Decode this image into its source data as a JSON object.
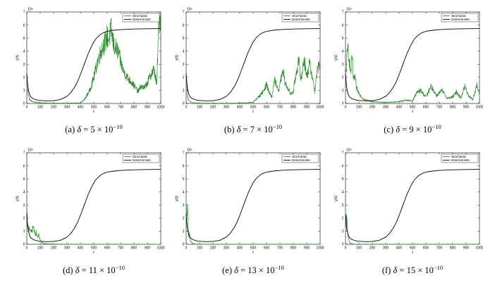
{
  "chart_data": [
    {
      "type": "line",
      "caption_label": "(a)",
      "delta_symbol": "δ",
      "delta_text": "= 5 × 10",
      "delta_exp": "−10",
      "xlabel": "t",
      "ylabel": "y(t)",
      "y_scale_label": "10⁸",
      "xlim": [
        0,
        1000
      ],
      "ylim": [
        0,
        7
      ],
      "xticks": [
        "0",
        "100",
        "200",
        "300",
        "400",
        "500",
        "600",
        "700",
        "800",
        "900",
        "1000"
      ],
      "yticks": [
        "0",
        "1",
        "2",
        "3",
        "4",
        "5",
        "6",
        "7"
      ],
      "legend": [
        "Stochastic",
        "Deterministic"
      ],
      "legend_position": "top-right",
      "series": [
        {
          "name": "Stochastic",
          "color": "#2e8b2e",
          "x": [
            0,
            10,
            20,
            40,
            60,
            100,
            200,
            300,
            400,
            430,
            470,
            500,
            530,
            560,
            590,
            600,
            610,
            630,
            650,
            680,
            700,
            720,
            750,
            800,
            830,
            850,
            880,
            900,
            930,
            950,
            970,
            985,
            1000
          ],
          "y": [
            2.3,
            0.8,
            0.3,
            0.15,
            0.1,
            0.05,
            0.02,
            0.02,
            0.04,
            0.3,
            1.0,
            2.0,
            3.3,
            4.2,
            4.8,
            5.2,
            4.9,
            5.6,
            4.4,
            4.0,
            3.2,
            2.5,
            2.0,
            1.4,
            0.9,
            1.3,
            1.2,
            1.6,
            2.3,
            2.6,
            1.4,
            6.2,
            6.8
          ]
        },
        {
          "name": "Deterministic",
          "color": "#000000",
          "x": [
            0,
            5,
            10,
            20,
            30,
            50,
            80,
            100,
            150,
            200,
            250,
            300,
            330,
            360,
            380,
            400,
            420,
            440,
            460,
            480,
            500,
            520,
            540,
            560,
            580,
            600,
            650,
            700,
            800,
            900,
            1000
          ],
          "y": [
            2.3,
            1.6,
            1.15,
            0.7,
            0.5,
            0.35,
            0.26,
            0.23,
            0.2,
            0.22,
            0.3,
            0.55,
            0.85,
            1.3,
            1.7,
            2.2,
            2.75,
            3.3,
            3.85,
            4.3,
            4.7,
            5.0,
            5.2,
            5.35,
            5.45,
            5.52,
            5.6,
            5.65,
            5.7,
            5.72,
            5.73
          ]
        }
      ]
    },
    {
      "type": "line",
      "caption_label": "(b)",
      "delta_symbol": "δ",
      "delta_text": "= 7 × 10",
      "delta_exp": "−10",
      "xlabel": "t",
      "ylabel": "y(t)",
      "y_scale_label": "10⁸",
      "xlim": [
        0,
        1000
      ],
      "ylim": [
        0,
        7
      ],
      "xticks": [
        "0",
        "100",
        "200",
        "300",
        "400",
        "500",
        "600",
        "700",
        "800",
        "900",
        "1000"
      ],
      "yticks": [
        "0",
        "1",
        "2",
        "3",
        "4",
        "5",
        "6",
        "7"
      ],
      "legend": [
        "Stochastic",
        "Deterministic"
      ],
      "legend_position": "top-right",
      "series": [
        {
          "name": "Stochastic",
          "color": "#2e8b2e",
          "x": [
            0,
            10,
            20,
            40,
            60,
            100,
            200,
            300,
            400,
            450,
            500,
            520,
            550,
            580,
            600,
            620,
            640,
            660,
            690,
            720,
            740,
            760,
            780,
            800,
            820,
            840,
            860,
            880,
            900,
            920,
            940,
            960,
            980,
            1000
          ],
          "y": [
            2.3,
            0.6,
            0.2,
            0.08,
            0.04,
            0.02,
            0.02,
            0.02,
            0.03,
            0.05,
            0.1,
            0.3,
            0.6,
            1.0,
            1.5,
            0.8,
            0.5,
            1.8,
            0.9,
            2.6,
            1.5,
            1.2,
            0.7,
            0.9,
            2.3,
            3.2,
            1.8,
            3.5,
            2.0,
            3.0,
            2.2,
            0.9,
            2.6,
            3.0
          ]
        },
        {
          "name": "Deterministic",
          "color": "#000000",
          "x": [
            0,
            5,
            10,
            20,
            30,
            50,
            80,
            100,
            150,
            200,
            250,
            300,
            330,
            360,
            380,
            400,
            420,
            440,
            460,
            480,
            500,
            520,
            540,
            560,
            580,
            600,
            650,
            700,
            800,
            900,
            1000
          ],
          "y": [
            2.3,
            1.6,
            1.15,
            0.7,
            0.5,
            0.35,
            0.26,
            0.23,
            0.2,
            0.22,
            0.3,
            0.55,
            0.85,
            1.3,
            1.7,
            2.2,
            2.75,
            3.3,
            3.85,
            4.3,
            4.7,
            5.0,
            5.2,
            5.35,
            5.45,
            5.52,
            5.6,
            5.65,
            5.7,
            5.72,
            5.73
          ]
        }
      ]
    },
    {
      "type": "line",
      "caption_label": "(c)",
      "delta_symbol": "δ",
      "delta_text": "= 9 × 10",
      "delta_exp": "−10",
      "xlabel": "t",
      "ylabel": "y(t)",
      "y_scale_label": "10⁸",
      "xlim": [
        0,
        1000
      ],
      "ylim": [
        0,
        7
      ],
      "xticks": [
        "0",
        "100",
        "200",
        "300",
        "400",
        "500",
        "600",
        "700",
        "800",
        "900",
        "1000"
      ],
      "yticks": [
        "0",
        "1",
        "2",
        "3",
        "4",
        "5",
        "6",
        "7"
      ],
      "legend": [
        "Stochastic",
        "Deterministic"
      ],
      "legend_position": "top-right",
      "series": [
        {
          "name": "Stochastic",
          "color": "#2e8b2e",
          "x": [
            0,
            10,
            20,
            30,
            40,
            50,
            60,
            70,
            80,
            100,
            120,
            140,
            160,
            200,
            250,
            300,
            350,
            400,
            450,
            500,
            530,
            560,
            600,
            640,
            680,
            720,
            760,
            800,
            830,
            860,
            890,
            920,
            950,
            980,
            1000
          ],
          "y": [
            2.0,
            3.2,
            4.5,
            3.0,
            2.4,
            3.6,
            1.7,
            2.1,
            1.2,
            0.8,
            0.5,
            0.3,
            0.25,
            0.15,
            0.1,
            0.08,
            0.1,
            0.15,
            0.25,
            0.2,
            0.8,
            1.0,
            0.5,
            1.3,
            0.6,
            1.0,
            0.4,
            0.5,
            0.9,
            0.4,
            1.3,
            0.6,
            0.3,
            1.4,
            0.7
          ]
        },
        {
          "name": "Deterministic",
          "color": "#000000",
          "x": [
            0,
            5,
            10,
            20,
            30,
            50,
            80,
            100,
            150,
            200,
            250,
            300,
            330,
            360,
            380,
            400,
            420,
            440,
            460,
            480,
            500,
            520,
            540,
            560,
            580,
            600,
            650,
            700,
            800,
            900,
            1000
          ],
          "y": [
            2.3,
            1.6,
            1.15,
            0.7,
            0.5,
            0.35,
            0.26,
            0.23,
            0.2,
            0.22,
            0.3,
            0.55,
            0.85,
            1.3,
            1.7,
            2.2,
            2.75,
            3.3,
            3.85,
            4.3,
            4.7,
            5.0,
            5.2,
            5.35,
            5.45,
            5.52,
            5.6,
            5.65,
            5.7,
            5.72,
            5.73
          ]
        }
      ]
    },
    {
      "type": "line",
      "caption_label": "(d)",
      "delta_symbol": "δ",
      "delta_text": "= 11 × 10",
      "delta_exp": "−10",
      "xlabel": "t",
      "ylabel": "y(t)",
      "y_scale_label": "10⁸",
      "xlim": [
        0,
        1000
      ],
      "ylim": [
        0,
        7
      ],
      "xticks": [
        "0",
        "100",
        "200",
        "300",
        "400",
        "500",
        "600",
        "700",
        "800",
        "900",
        "1000"
      ],
      "yticks": [
        "0",
        "1",
        "2",
        "3",
        "4",
        "5",
        "6",
        "7"
      ],
      "legend": [
        "Stochastic",
        "Deterministic"
      ],
      "legend_position": "top-right",
      "series": [
        {
          "name": "Stochastic",
          "color": "#2e8b2e",
          "x": [
            0,
            5,
            10,
            20,
            30,
            40,
            50,
            60,
            70,
            80,
            90,
            100,
            110,
            130,
            160,
            200,
            300,
            400,
            500,
            600,
            700,
            800,
            900,
            1000
          ],
          "y": [
            2.8,
            1.6,
            1.2,
            1.3,
            0.9,
            1.1,
            1.4,
            0.7,
            0.9,
            0.5,
            0.7,
            0.3,
            0.15,
            0.05,
            0.02,
            0.01,
            0,
            0,
            0,
            0,
            0,
            0,
            0,
            0
          ]
        },
        {
          "name": "Deterministic",
          "color": "#000000",
          "x": [
            0,
            5,
            10,
            20,
            30,
            50,
            80,
            100,
            150,
            200,
            250,
            300,
            330,
            360,
            380,
            400,
            420,
            440,
            460,
            480,
            500,
            520,
            540,
            560,
            580,
            600,
            650,
            700,
            800,
            900,
            1000
          ],
          "y": [
            2.3,
            1.6,
            1.15,
            0.7,
            0.5,
            0.35,
            0.26,
            0.23,
            0.2,
            0.22,
            0.3,
            0.55,
            0.85,
            1.3,
            1.7,
            2.2,
            2.75,
            3.3,
            3.85,
            4.3,
            4.7,
            5.0,
            5.2,
            5.35,
            5.45,
            5.52,
            5.6,
            5.65,
            5.7,
            5.72,
            5.73
          ]
        }
      ]
    },
    {
      "type": "line",
      "caption_label": "(e)",
      "delta_symbol": "δ",
      "delta_text": "= 13 × 10",
      "delta_exp": "−10",
      "xlabel": "t",
      "ylabel": "y(t)",
      "y_scale_label": "10⁸",
      "xlim": [
        0,
        1000
      ],
      "ylim": [
        0,
        7
      ],
      "xticks": [
        "0",
        "100",
        "200",
        "300",
        "400",
        "500",
        "600",
        "700",
        "800",
        "900",
        "1000"
      ],
      "yticks": [
        "0",
        "1",
        "2",
        "3",
        "4",
        "5",
        "6",
        "7"
      ],
      "legend": [
        "Stochastic",
        "Deterministic"
      ],
      "legend_position": "top-right",
      "series": [
        {
          "name": "Stochastic",
          "color": "#2e8b2e",
          "x": [
            0,
            5,
            10,
            15,
            20,
            25,
            30,
            40,
            50,
            60,
            80,
            100,
            200,
            300,
            400,
            500,
            600,
            700,
            800,
            900,
            1000
          ],
          "y": [
            3.0,
            2.0,
            3.1,
            1.2,
            0.6,
            0.9,
            0.3,
            0.15,
            0.06,
            0.02,
            0.01,
            0,
            0,
            0,
            0,
            0,
            0,
            0,
            0,
            0,
            0
          ]
        },
        {
          "name": "Deterministic",
          "color": "#000000",
          "x": [
            0,
            5,
            10,
            20,
            30,
            50,
            80,
            100,
            150,
            200,
            250,
            300,
            330,
            360,
            380,
            400,
            420,
            440,
            460,
            480,
            500,
            520,
            540,
            560,
            580,
            600,
            650,
            700,
            800,
            900,
            1000
          ],
          "y": [
            2.3,
            1.6,
            1.15,
            0.7,
            0.5,
            0.35,
            0.26,
            0.23,
            0.2,
            0.22,
            0.3,
            0.55,
            0.85,
            1.3,
            1.7,
            2.2,
            2.75,
            3.3,
            3.85,
            4.3,
            4.7,
            5.0,
            5.2,
            5.35,
            5.45,
            5.52,
            5.6,
            5.65,
            5.7,
            5.72,
            5.73
          ]
        }
      ]
    },
    {
      "type": "line",
      "caption_label": "(f)",
      "delta_symbol": "δ",
      "delta_text": "= 15 × 10",
      "delta_exp": "−10",
      "xlabel": "t",
      "ylabel": "y(t)",
      "y_scale_label": "10⁸",
      "xlim": [
        0,
        1000
      ],
      "ylim": [
        0,
        7
      ],
      "xticks": [
        "0",
        "100",
        "200",
        "300",
        "400",
        "500",
        "600",
        "700",
        "800",
        "900",
        "1000"
      ],
      "yticks": [
        "0",
        "1",
        "2",
        "3",
        "4",
        "5",
        "6",
        "7"
      ],
      "legend": [
        "Stochastic",
        "Deterministic"
      ],
      "legend_position": "top-right",
      "series": [
        {
          "name": "Stochastic",
          "color": "#2e8b2e",
          "x": [
            0,
            5,
            10,
            15,
            20,
            25,
            30,
            40,
            50,
            60,
            80,
            100,
            200,
            300,
            400,
            500,
            600,
            700,
            800,
            900,
            1000
          ],
          "y": [
            2.6,
            1.5,
            2.2,
            1.0,
            0.5,
            0.3,
            0.15,
            0.06,
            0.03,
            0.01,
            0,
            0,
            0,
            0,
            0,
            0,
            0,
            0,
            0,
            0,
            0
          ]
        },
        {
          "name": "Deterministic",
          "color": "#000000",
          "x": [
            0,
            5,
            10,
            20,
            30,
            50,
            80,
            100,
            150,
            200,
            250,
            300,
            330,
            360,
            380,
            400,
            420,
            440,
            460,
            480,
            500,
            520,
            540,
            560,
            580,
            600,
            650,
            700,
            800,
            900,
            1000
          ],
          "y": [
            2.3,
            1.6,
            1.15,
            0.7,
            0.5,
            0.35,
            0.26,
            0.23,
            0.2,
            0.22,
            0.3,
            0.55,
            0.85,
            1.3,
            1.7,
            2.2,
            2.75,
            3.3,
            3.85,
            4.3,
            4.7,
            5.0,
            5.2,
            5.35,
            5.45,
            5.52,
            5.6,
            5.65,
            5.7,
            5.72,
            5.73
          ]
        }
      ]
    }
  ]
}
